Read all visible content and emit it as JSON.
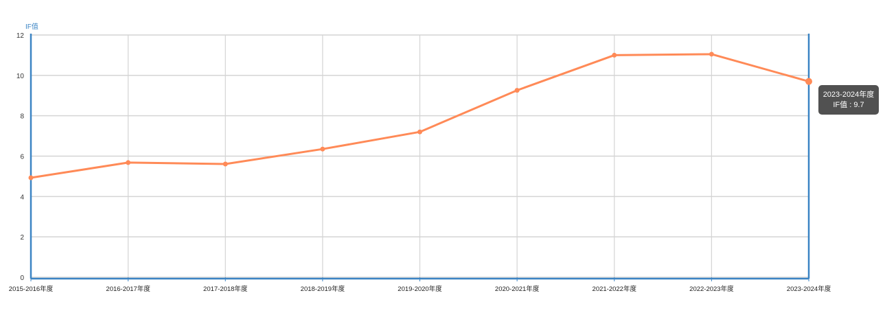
{
  "chart_data": {
    "type": "line",
    "ylabel": "IF值",
    "categories": [
      "2015-2016年度",
      "2016-2017年度",
      "2017-2018年度",
      "2018-2019年度",
      "2019-2020年度",
      "2020-2021年度",
      "2021-2022年度",
      "2022-2023年度",
      "2023-2024年度"
    ],
    "series": [
      {
        "values": [
          4.93,
          5.68,
          5.61,
          6.35,
          7.2,
          9.26,
          11.0,
          11.05,
          9.7
        ]
      }
    ],
    "ylim": [
      0,
      12
    ],
    "yticks": [
      "0",
      "2",
      "4",
      "6",
      "8",
      "10",
      "12"
    ],
    "grid": true,
    "colors": {
      "line": "#ff8a57",
      "axis": "#3b84c4",
      "grid": "#d4d4d4",
      "tooltip_bg": "#4a4a4a"
    }
  },
  "tooltip": {
    "title": "2023-2024年度",
    "label": "IF值 : 9.7",
    "highlighted_index": 8
  }
}
